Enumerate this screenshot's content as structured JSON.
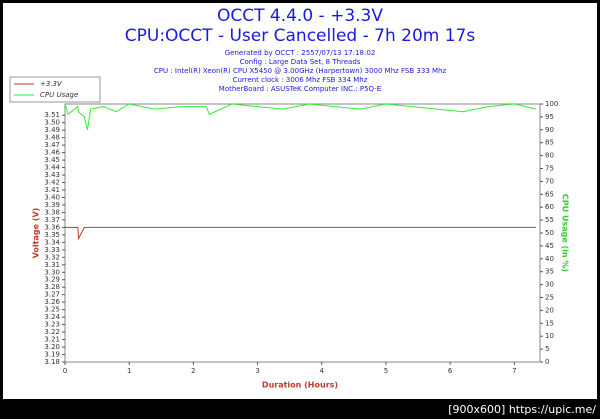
{
  "chart_data": {
    "type": "line",
    "title": "OCCT 4.4.0 - +3.3V",
    "subtitle": "CPU:OCCT - User Cancelled - 7h 20m 17s",
    "info": [
      "Generated by OCCT : 2557/07/13 17:18:02",
      "Config : Large Data Set, 8 Threads",
      "CPU : Intel(R) Xeon(R) CPU X5450 @ 3.00GHz (Harpertown) 3000 Mhz FSB 333 Mhz",
      "Current clock : 3006 Mhz FSB 334 Mhz",
      "MotherBoard : ASUSTeK Computer INC.: P5Q-E"
    ],
    "x_label": "Duration (Hours)",
    "y_label": "Voltage (V)",
    "y2_label": "CPU Usage (in %)",
    "x": [
      0,
      0.05,
      0.2,
      0.21,
      0.3,
      0.35,
      0.4,
      0.6,
      0.8,
      1.0,
      1.4,
      1.8,
      2.2,
      2.25,
      2.6,
      3.0,
      3.4,
      3.8,
      4.2,
      4.6,
      5.0,
      5.4,
      5.8,
      6.2,
      6.6,
      7.0,
      7.34
    ],
    "series": [
      {
        "name": "+3.3V",
        "color": "#c0392b",
        "axis": "y",
        "values": [
          3.36,
          3.36,
          3.36,
          3.345,
          3.36,
          3.36,
          3.36,
          3.36,
          3.36,
          3.36,
          3.36,
          3.36,
          3.36,
          3.36,
          3.36,
          3.36,
          3.36,
          3.36,
          3.36,
          3.36,
          3.36,
          3.36,
          3.36,
          3.36,
          3.36,
          3.36,
          3.36
        ]
      },
      {
        "name": "CPU Usage",
        "color": "#33ee33",
        "axis": "y2",
        "values": [
          100,
          96,
          99,
          97,
          95,
          90,
          98,
          99,
          97,
          100,
          98,
          99,
          99,
          96,
          100,
          99,
          98,
          100,
          99,
          98,
          100,
          99,
          98,
          97,
          99,
          100,
          98
        ]
      }
    ],
    "xlim": [
      0,
      7.4
    ],
    "xticks": [
      0,
      1,
      2,
      3,
      4,
      5,
      6,
      7
    ],
    "ylim": [
      3.18,
      3.525
    ],
    "yticks": [
      3.18,
      3.19,
      {
        "value": 3.2,
        "label": "3.20"
      },
      3.21,
      3.22,
      3.23,
      3.24,
      3.25,
      3.26,
      3.27,
      3.28,
      3.29,
      {
        "value": 3.3,
        "label": "3.30"
      },
      3.31,
      3.32,
      3.33,
      3.34,
      3.35,
      3.36,
      3.37,
      3.38,
      3.39,
      {
        "value": 3.4,
        "label": "3.40"
      },
      3.41,
      3.42,
      3.43,
      3.44,
      3.45,
      3.46,
      3.47,
      3.48,
      3.49,
      {
        "value": 3.5,
        "label": "3.50"
      },
      3.51
    ],
    "y2lim": [
      0,
      100
    ],
    "y2ticks": [
      0,
      5,
      10,
      15,
      20,
      25,
      30,
      35,
      40,
      45,
      50,
      55,
      60,
      65,
      70,
      75,
      80,
      85,
      90,
      95,
      100
    ],
    "legend": "top-left",
    "watermark": "[900x600] https://upic.me/"
  }
}
